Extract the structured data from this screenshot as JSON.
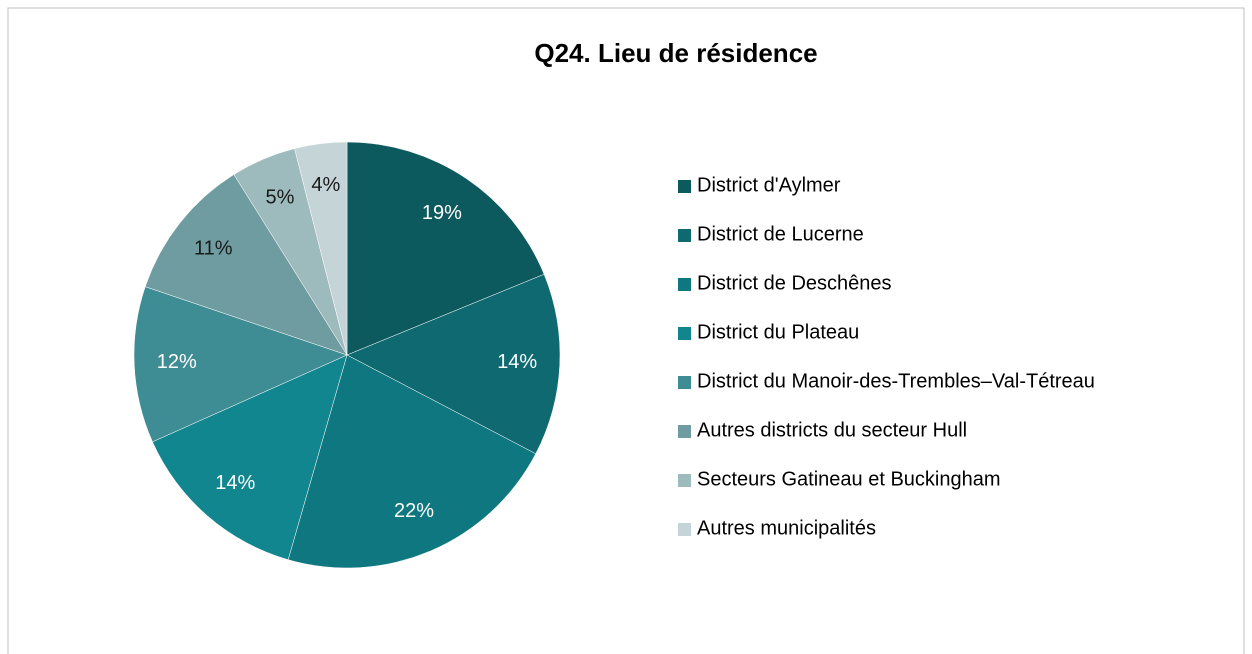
{
  "chart_data": {
    "type": "pie",
    "title": "Q24. Lieu de résidence",
    "categories": [
      "District d'Aylmer",
      "District de Lucerne",
      "District de Deschênes",
      "District du Plateau",
      "District du Manoir-des-Trembles–Val-Tétreau",
      "Autres districts du secteur Hull",
      "Secteurs Gatineau et Buckingham",
      "Autres municipalités"
    ],
    "values": [
      19,
      14,
      22,
      14,
      12,
      11,
      5,
      4
    ],
    "value_labels": [
      "19%",
      "14%",
      "22%",
      "14%",
      "12%",
      "11%",
      "5%",
      "4%"
    ],
    "colors": [
      "#0d5a5e",
      "#0e6a70",
      "#0f7780",
      "#12868f",
      "#3f8d94",
      "#6e9ca1",
      "#9dbabd",
      "#c4d4d7"
    ],
    "legend": "right"
  }
}
